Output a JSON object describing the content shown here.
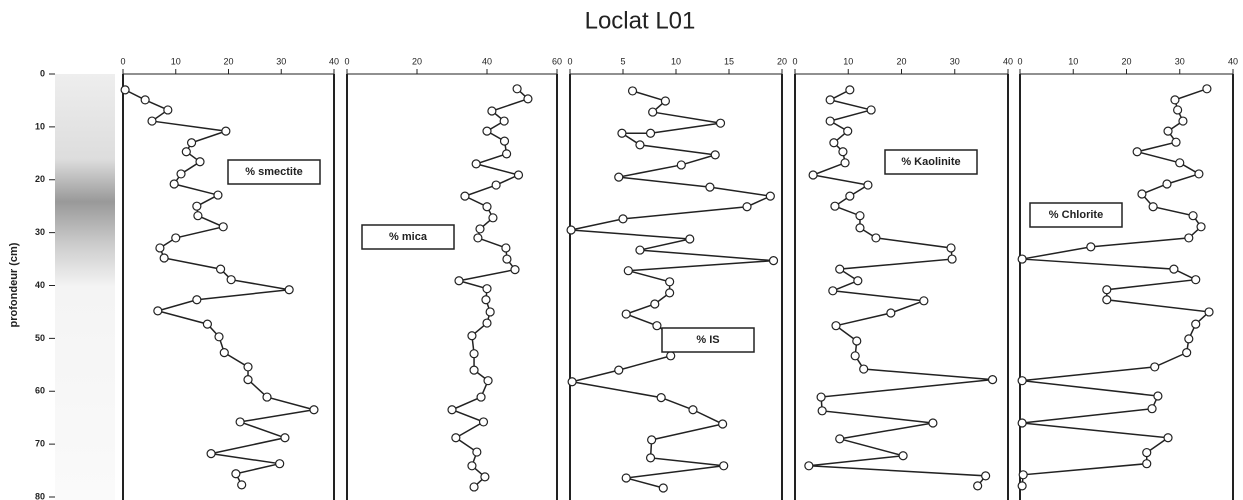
{
  "title": "Loclat L01",
  "chart_data": [
    {
      "type": "line",
      "annotation": "% smectite",
      "ylabel": "profondeur (cm)",
      "ylim": [
        0,
        80
      ],
      "y_inverted": true,
      "yticks": [
        0,
        10,
        20,
        30,
        40,
        50,
        60,
        70,
        80
      ],
      "xlim": [
        0,
        40
      ],
      "xticks": [
        0,
        10,
        20,
        30,
        40
      ],
      "color": "#222",
      "x": [
        0.4,
        4.2,
        8.5,
        5.5,
        19.5,
        13,
        12,
        14.6,
        11,
        9.7,
        18,
        14,
        14.2,
        19,
        10,
        7,
        7.8,
        18.5,
        20.5,
        31.5,
        14,
        6.6,
        16,
        18.2,
        19.2,
        23.7,
        23.7,
        27.3,
        36.2,
        22.2,
        30.7,
        16.7,
        29.7,
        21.4,
        22.5
      ],
      "y": [
        3,
        4.9,
        6.8,
        8.9,
        10.8,
        13,
        14.7,
        16.6,
        18.9,
        20.8,
        22.9,
        25,
        26.8,
        28.9,
        31,
        32.9,
        34.8,
        36.9,
        38.9,
        40.8,
        42.7,
        44.8,
        47.3,
        49.7,
        52.7,
        55.4,
        57.8,
        61.1,
        63.5,
        65.8,
        68.8,
        71.8,
        73.7,
        75.6,
        77.7
      ]
    },
    {
      "type": "line",
      "annotation": "% mica",
      "ylim": [
        0,
        80
      ],
      "y_inverted": true,
      "xlim": [
        0,
        60
      ],
      "xticks": [
        0,
        20,
        40,
        60
      ],
      "color": "#222",
      "x": [
        48.6,
        51.7,
        41.4,
        44.9,
        40,
        45,
        45.6,
        36.9,
        49,
        42.6,
        33.7,
        40,
        41.7,
        38,
        37.4,
        45.4,
        45.7,
        48,
        32,
        40,
        39.7,
        40.9,
        40,
        35.7,
        36.3,
        36.3,
        40.3,
        38.3,
        30,
        39,
        31.1,
        37.1,
        35.7,
        39.4,
        36.3
      ],
      "y": [
        2.8,
        4.7,
        7,
        8.9,
        10.8,
        12.7,
        15.1,
        17,
        19.1,
        21,
        23.1,
        25.1,
        27.2,
        29.3,
        31,
        32.9,
        35,
        37,
        39.1,
        40.6,
        42.7,
        45,
        47.1,
        49.5,
        52.9,
        56,
        58,
        61.1,
        63.5,
        65.8,
        68.8,
        71.5,
        74.1,
        76.2,
        78.1
      ]
    },
    {
      "type": "line",
      "annotation": "% IS",
      "ylim": [
        0,
        80
      ],
      "y_inverted": true,
      "xlim": [
        0,
        20
      ],
      "xticks": [
        0,
        5,
        10,
        15,
        20
      ],
      "color": "#222",
      "x": [
        5.9,
        9,
        7.8,
        14.2,
        7.6,
        4.9,
        6.6,
        13.7,
        10.5,
        4.6,
        13.2,
        18.9,
        16.7,
        5,
        0.1,
        11.3,
        6.6,
        19.2,
        5.5,
        9.4,
        9.4,
        8,
        5.3,
        8.2,
        10.2,
        9.5,
        4.6,
        0.2,
        8.6,
        11.6,
        14.4,
        7.7,
        7.6,
        14.5,
        5.3,
        8.8
      ],
      "y": [
        3.2,
        5.1,
        7.2,
        9.3,
        11.2,
        11.2,
        13.4,
        15.3,
        17.2,
        19.5,
        21.4,
        23.1,
        25.1,
        27.4,
        29.5,
        31.2,
        33.3,
        35.3,
        37.2,
        39.3,
        41.4,
        43.5,
        45.4,
        47.6,
        50.3,
        53.3,
        56,
        58.2,
        61.2,
        63.5,
        66.2,
        69.2,
        72.6,
        74.1,
        76.4,
        78.3
      ]
    },
    {
      "type": "line",
      "annotation": "% Kaolinite",
      "ylim": [
        0,
        80
      ],
      "y_inverted": true,
      "xlim": [
        0,
        40
      ],
      "xticks": [
        0,
        10,
        20,
        30,
        40
      ],
      "color": "#222",
      "x": [
        10.3,
        6.6,
        14.3,
        6.6,
        9.9,
        7.3,
        9,
        9.4,
        3.4,
        13.7,
        10.3,
        7.5,
        12.2,
        12.2,
        15.2,
        29.3,
        29.5,
        8.4,
        11.8,
        7.1,
        24.2,
        18,
        7.7,
        11.6,
        11.3,
        12.9,
        37.1,
        4.9,
        5.1,
        25.9,
        8.4,
        20.3,
        2.6,
        35.8,
        34.3
      ],
      "y": [
        3,
        4.9,
        6.8,
        8.9,
        10.8,
        13,
        14.7,
        16.8,
        19.1,
        21,
        23.1,
        25,
        26.8,
        29.1,
        31,
        32.9,
        35,
        36.9,
        39.1,
        41,
        42.9,
        45.2,
        47.6,
        50.5,
        53.3,
        55.8,
        57.8,
        61.1,
        63.7,
        66,
        69,
        72.2,
        74.1,
        76,
        77.9
      ]
    },
    {
      "type": "line",
      "annotation": "% Chlorite",
      "ylim": [
        0,
        80
      ],
      "y_inverted": true,
      "xlim": [
        0,
        40
      ],
      "xticks": [
        0,
        10,
        20,
        30,
        40
      ],
      "color": "#222",
      "x": [
        35.1,
        29.1,
        29.6,
        30.6,
        27.8,
        29.3,
        22,
        30,
        33.6,
        27.6,
        22.9,
        25,
        32.5,
        34,
        31.7,
        13.3,
        0.4,
        28.9,
        33,
        16.3,
        16.3,
        35.5,
        33,
        31.7,
        31.3,
        25.3,
        0.4,
        25.9,
        24.8,
        0.4,
        27.8,
        23.8,
        23.8,
        0.6,
        0.4
      ],
      "y": [
        2.8,
        4.9,
        6.8,
        8.9,
        10.8,
        12.9,
        14.7,
        16.8,
        18.9,
        20.8,
        22.7,
        25.1,
        26.8,
        28.9,
        31,
        32.7,
        35,
        36.9,
        38.9,
        40.8,
        42.7,
        45,
        47.3,
        50.1,
        52.7,
        55.4,
        58,
        60.9,
        63.3,
        66,
        68.8,
        71.6,
        73.7,
        75.8,
        77.9
      ]
    }
  ]
}
